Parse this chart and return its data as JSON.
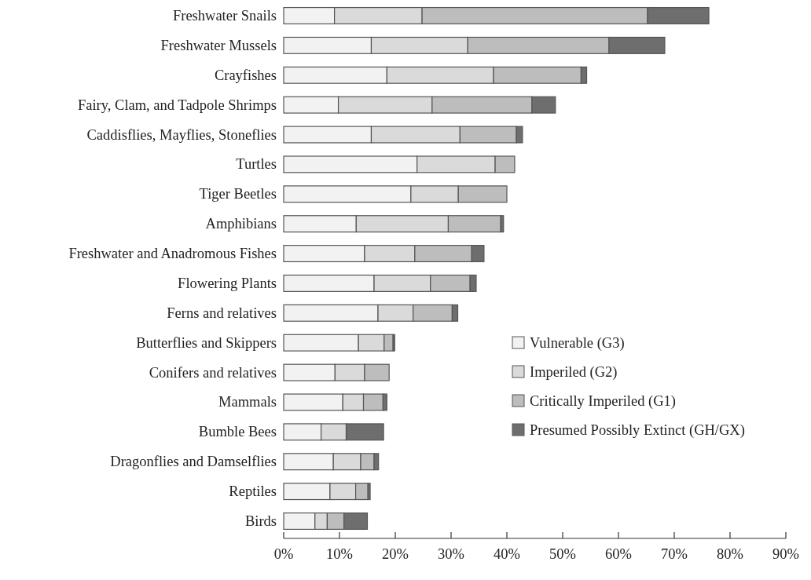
{
  "chart_data": {
    "type": "bar",
    "orientation": "horizontal",
    "stacked": true,
    "legend": "right",
    "categories": [
      "Freshwater Snails",
      "Freshwater Mussels",
      "Crayfishes",
      "Fairy, Clam, and Tadpole Shrimps",
      "Caddisflies, Mayflies, Stoneflies",
      "Turtles",
      "Tiger Beetles",
      "Amphibians",
      "Freshwater and Anadromous Fishes",
      "Flowering Plants",
      "Ferns and relatives",
      "Butterflies and Skippers",
      "Conifers and relatives",
      "Mammals",
      "Bumble Bees",
      "Dragonflies and Damselflies",
      "Reptiles",
      "Birds"
    ],
    "series": [
      {
        "name": "Vulnerable (G3)",
        "color": "#f2f2f2",
        "values": [
          9.1,
          15.7,
          18.5,
          9.8,
          15.7,
          23.9,
          22.8,
          13.0,
          14.5,
          16.2,
          16.9,
          13.4,
          9.2,
          10.6,
          6.7,
          8.9,
          8.3,
          5.6
        ]
      },
      {
        "name": "Imperiled (G2)",
        "color": "#dadada",
        "values": [
          15.7,
          17.3,
          19.1,
          16.8,
          15.9,
          14.0,
          8.5,
          16.5,
          9.0,
          10.1,
          6.3,
          4.6,
          5.3,
          3.7,
          4.5,
          4.9,
          4.6,
          2.2
        ]
      },
      {
        "name": "Critically Imperiled (G1)",
        "color": "#bdbdbd",
        "values": [
          40.4,
          25.3,
          15.7,
          17.9,
          10.1,
          3.5,
          8.7,
          9.4,
          10.2,
          7.1,
          7.0,
          1.6,
          4.4,
          3.5,
          0,
          2.4,
          2.2,
          3.0
        ]
      },
      {
        "name": "Presumed Possibly Extinct (GH/GX)",
        "color": "#6e6e6e",
        "values": [
          11.0,
          10.0,
          1.0,
          4.2,
          1.1,
          0,
          0,
          0.5,
          2.2,
          1.1,
          1.0,
          0.3,
          0,
          0.7,
          6.7,
          0.8,
          0.4,
          4.2
        ]
      }
    ],
    "xlim": [
      0,
      90
    ],
    "xticks": [
      {
        "value": 0,
        "label": "0%"
      },
      {
        "value": 10,
        "label": "10%"
      },
      {
        "value": 20,
        "label": "20%"
      },
      {
        "value": 30,
        "label": "30%"
      },
      {
        "value": 40,
        "label": "40%"
      },
      {
        "value": 50,
        "label": "50%"
      },
      {
        "value": 60,
        "label": "60%"
      },
      {
        "value": 70,
        "label": "70%"
      },
      {
        "value": 80,
        "label": "80%"
      },
      {
        "value": 90,
        "label": "90%"
      }
    ]
  }
}
